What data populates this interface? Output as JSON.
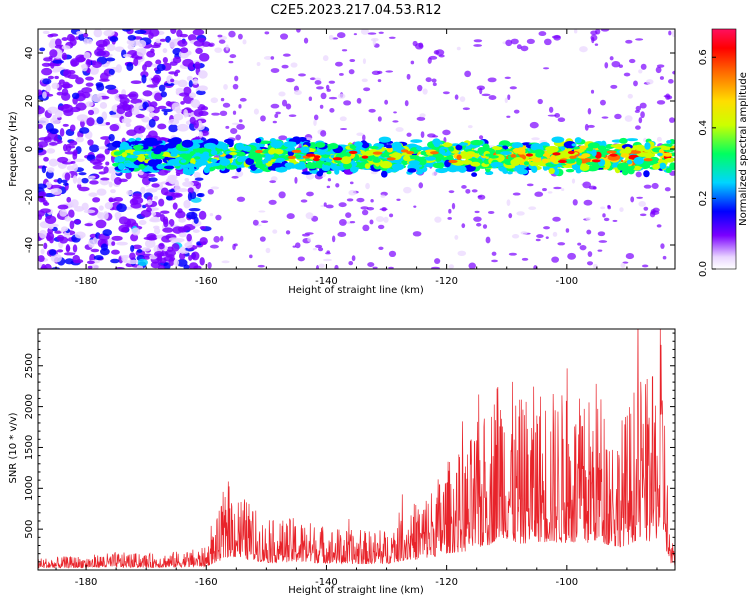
{
  "figure": {
    "title": "C2E5.2023.217.04.53.R12"
  },
  "chart_data": [
    {
      "type": "heatmap",
      "title": "",
      "xlabel": "Height of straight line (km)",
      "ylabel": "Frequency (Hz)",
      "xlim": [
        -188,
        -82
      ],
      "ylim": [
        -50,
        50
      ],
      "xticks": [
        -180,
        -160,
        -140,
        -120,
        -100
      ],
      "yticks": [
        -40,
        -20,
        0,
        20,
        40
      ],
      "colorbar": {
        "label": "Normalized spectral amplitude",
        "range": [
          0,
          0.68
        ],
        "ticks": [
          0.0,
          0.2,
          0.4,
          0.6
        ],
        "colormap": "rainbow"
      },
      "description_values": {
        "band_center_hz": -3,
        "band_halfwidth_hz": 7,
        "band_start_km": -175,
        "diffuse_region_km": [
          -188,
          -160
        ]
      }
    },
    {
      "type": "line",
      "title": "",
      "xlabel": "Height of straight line (km)",
      "ylabel": "SNR (10 * v/v)",
      "xlim": [
        -188,
        -82
      ],
      "ylim": [
        0,
        2950
      ],
      "xticks": [
        -180,
        -160,
        -140,
        -120,
        -100
      ],
      "yticks": [
        500,
        1000,
        1500,
        2000,
        2500
      ],
      "series": [
        {
          "color": "#e8232a",
          "x": [
            -188,
            -180,
            -175,
            -170,
            -165,
            -160,
            -158,
            -156,
            -150,
            -145,
            -140,
            -135,
            -130,
            -127,
            -125,
            -122,
            -120,
            -117,
            -115,
            -113,
            -111,
            -108,
            -105,
            -100,
            -97,
            -95,
            -92,
            -90,
            -88,
            -86,
            -84,
            -83,
            -82
          ],
          "values": [
            150,
            180,
            220,
            200,
            230,
            280,
            700,
            1100,
            600,
            650,
            550,
            480,
            500,
            800,
            850,
            1100,
            1350,
            1500,
            1800,
            2000,
            2700,
            2100,
            2300,
            2200,
            2100,
            2400,
            1800,
            2000,
            2500,
            2300,
            2900,
            600,
            200
          ]
        }
      ]
    }
  ]
}
